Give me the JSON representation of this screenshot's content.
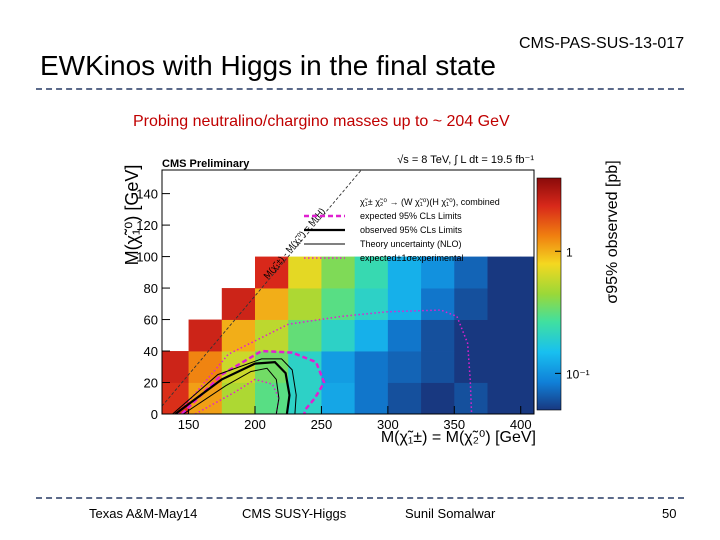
{
  "slide": {
    "reference": "CMS-PAS-SUS-13-017",
    "title": "EWKinos with Higgs in the final state",
    "subtitle": "Probing neutralino/chargino masses up to ~ 204 GeV",
    "footer": {
      "left": "Texas A&M-May14",
      "center": "CMS SUSY-Higgs",
      "right": "Sunil Somalwar",
      "page": "50"
    }
  },
  "chart_data": {
    "type": "heatmap",
    "header_left": "CMS Preliminary",
    "header_right": "√s = 8 TeV, ∫ L dt = 19.5 fb⁻¹",
    "xlabel": "M(χ̃₁±) = M(χ̃₂⁰) [GeV]",
    "ylabel": "M(χ̃₁⁰) [GeV]",
    "zlabel": "σ95% observed [pb]",
    "xlim": [
      130,
      410
    ],
    "ylim": [
      0,
      155
    ],
    "xticks": [
      150,
      200,
      250,
      300,
      350,
      400
    ],
    "yticks": [
      0,
      20,
      40,
      60,
      80,
      100,
      120,
      140
    ],
    "colorbar_labels": [
      {
        "label": "1",
        "value": 1
      },
      {
        "label": "10⁻¹",
        "value": 0.1
      }
    ],
    "zlim_log10": [
      -1.3,
      0.6
    ],
    "diagonal_label": "M(χ̃₁±) - M(χ̃₁⁰) = M(H)",
    "diagonal_mh": 125,
    "legend": {
      "process": "χ̃₁± χ̃₂⁰ → (W χ̃₁⁰)(H χ̃₁⁰), combined",
      "items": [
        {
          "label": "expected 95% CLs Limits",
          "color": "#e020d0",
          "dash": "dashed",
          "width": 2.5
        },
        {
          "label": "observed 95% CLs Limits",
          "color": "#000000",
          "dash": "solid",
          "width": 2.2
        },
        {
          "label": "Theory uncertainty (NLO)",
          "color": "#000000",
          "dash": "solid",
          "width": 1
        },
        {
          "label": "expected±1σexperimental",
          "color": "#e020d0",
          "dash": "dotted",
          "width": 1.5
        }
      ]
    },
    "grid": {
      "cell_width": 25,
      "cell_height": 20,
      "rows": [
        {
          "y0": 0,
          "x0": 125,
          "values": [
            2.2,
            1.1,
            0.5,
            0.3,
            0.2,
            0.12,
            0.08,
            0.06,
            0.05,
            0.06,
            0.04,
            0.03
          ]
        },
        {
          "y0": 20,
          "x0": 125,
          "values": [
            2.5,
            1.3,
            0.6,
            0.35,
            0.2,
            0.11,
            0.08,
            0.07,
            0.06,
            0.05,
            0.04,
            0.03
          ]
        },
        {
          "y0": 40,
          "x0": 150,
          "values": [
            2.5,
            1.0,
            0.55,
            0.32,
            0.2,
            0.13,
            0.08,
            0.06,
            0.05,
            0.04,
            0.03
          ]
        },
        {
          "y0": 60,
          "x0": 175,
          "values": [
            2.5,
            1.0,
            0.5,
            0.3,
            0.2,
            0.13,
            0.08,
            0.06,
            0.05,
            0.04
          ]
        },
        {
          "y0": 80,
          "x0": 200,
          "values": [
            2.3,
            0.7,
            0.38,
            0.23,
            0.13,
            0.1,
            0.07,
            0.05,
            0.05
          ]
        }
      ]
    },
    "curves": {
      "expected": [
        [
          145,
          0
        ],
        [
          175,
          25
        ],
        [
          205,
          40
        ],
        [
          228,
          39
        ],
        [
          246,
          33
        ],
        [
          252,
          20
        ],
        [
          245,
          10
        ],
        [
          238,
          3
        ],
        [
          237,
          0
        ]
      ],
      "expected_plus1sigma": [
        [
          142,
          0
        ],
        [
          180,
          38
        ],
        [
          225,
          57
        ],
        [
          265,
          62
        ],
        [
          300,
          65
        ],
        [
          340,
          66
        ],
        [
          352,
          62
        ],
        [
          360,
          45
        ],
        [
          362,
          22
        ],
        [
          363,
          0
        ]
      ],
      "expected_minus1sigma": [
        [
          155,
          0
        ],
        [
          185,
          14
        ],
        [
          200,
          22
        ],
        [
          213,
          19
        ],
        [
          218,
          10
        ],
        [
          216,
          0
        ]
      ],
      "observed": [
        [
          140,
          0
        ],
        [
          175,
          22
        ],
        [
          200,
          32
        ],
        [
          215,
          33
        ],
        [
          223,
          26
        ],
        [
          226,
          12
        ],
        [
          224,
          0
        ]
      ],
      "theory_up": [
        [
          138,
          0
        ],
        [
          172,
          25
        ],
        [
          205,
          35
        ],
        [
          220,
          35
        ],
        [
          228,
          28
        ],
        [
          231,
          12
        ],
        [
          230,
          0
        ]
      ],
      "theory_down": [
        [
          146,
          0
        ],
        [
          178,
          18
        ],
        [
          197,
          27
        ],
        [
          209,
          29
        ],
        [
          216,
          22
        ],
        [
          218,
          10
        ],
        [
          216,
          0
        ]
      ]
    }
  }
}
